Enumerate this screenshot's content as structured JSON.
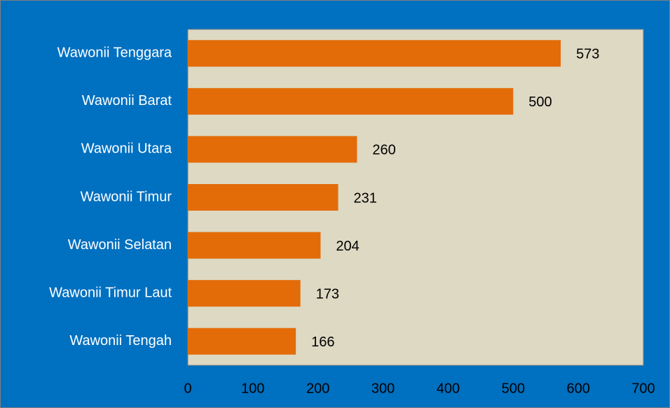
{
  "chart_data": {
    "type": "bar",
    "orientation": "horizontal",
    "categories": [
      "Wawonii Tenggara",
      "Wawonii Barat",
      "Wawonii Utara",
      "Wawonii Timur",
      "Wawonii Selatan",
      "Wawonii Timur Laut",
      "Wawonii Tengah"
    ],
    "values": [
      573,
      500,
      260,
      231,
      204,
      173,
      166
    ],
    "color": "#e36c09",
    "xlim": [
      0,
      700
    ],
    "xticks": [
      0,
      100,
      200,
      300,
      400,
      500,
      600,
      700
    ],
    "grid": false
  }
}
